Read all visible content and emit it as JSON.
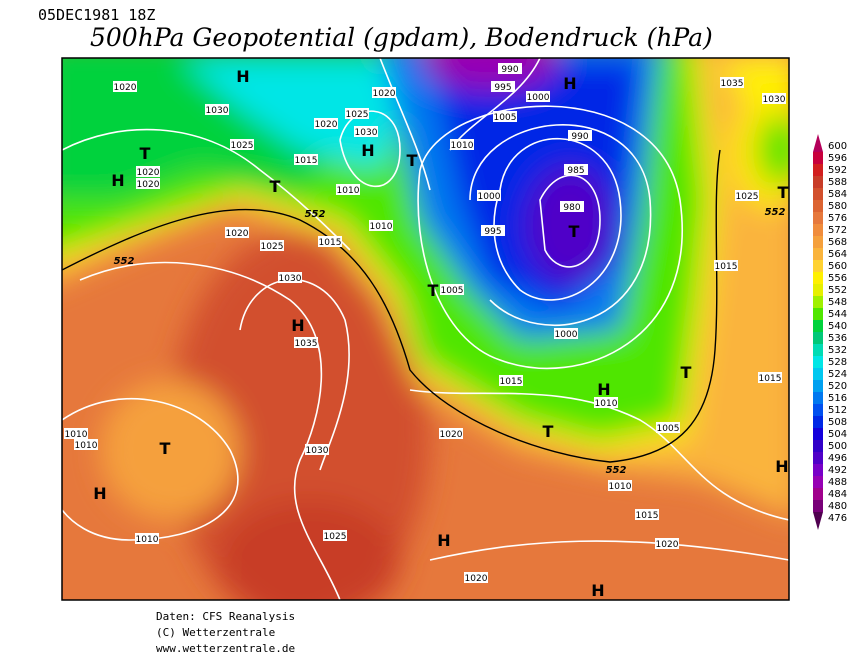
{
  "header": {
    "date": "05DEC1981 18Z",
    "title": "500hPa Geopotential (gpdam), Bodendruck (hPa)"
  },
  "map": {
    "pressure_labels": [
      "1020",
      "1030",
      "1025",
      "1020",
      "1020",
      "1015",
      "1010",
      "1020",
      "1025",
      "1030",
      "1020",
      "990",
      "995",
      "1000",
      "1005",
      "1010",
      "990",
      "985",
      "980",
      "1000",
      "995",
      "1010",
      "1020",
      "1025",
      "1015",
      "1005",
      "1030",
      "1035",
      "1000",
      "1015",
      "1010",
      "1005",
      "1020",
      "1010",
      "1010",
      "1030",
      "1010",
      "1015",
      "1025",
      "1010",
      "1020",
      "1020",
      "1035",
      "1030",
      "1025",
      "1015",
      "1015"
    ],
    "contour_labels": [
      "552",
      "552",
      "552",
      "552"
    ],
    "centers": [
      "H",
      "H",
      "T",
      "H",
      "H",
      "T",
      "T",
      "T",
      "T",
      "H",
      "T",
      "H",
      "T",
      "T",
      "H",
      "H",
      "H",
      "T",
      "H"
    ]
  },
  "colorbar": {
    "ticks": [
      600,
      596,
      592,
      588,
      584,
      580,
      576,
      572,
      568,
      564,
      560,
      556,
      552,
      548,
      544,
      540,
      536,
      532,
      528,
      524,
      520,
      516,
      512,
      508,
      504,
      500,
      496,
      492,
      488,
      484,
      480,
      476
    ],
    "colors": [
      "#b4005a",
      "#c8003c",
      "#d21e1e",
      "#c83c28",
      "#d2502d",
      "#dc6432",
      "#e6783c",
      "#f08c3c",
      "#f5a03c",
      "#fab43c",
      "#ffd232",
      "#fff000",
      "#e6f000",
      "#a0f000",
      "#50e600",
      "#00d23c",
      "#00c878",
      "#00dcb4",
      "#00e6e6",
      "#00c8f0",
      "#00a0f0",
      "#0078f0",
      "#0050f0",
      "#0028e6",
      "#1400dc",
      "#3200c8",
      "#5000c8",
      "#7800c8",
      "#9600b4",
      "#a0008c",
      "#780078",
      "#500050"
    ]
  },
  "footer": {
    "lines": [
      "Daten: CFS Reanalysis",
      "(C) Wetterzentrale",
      "www.wetterzentrale.de"
    ]
  }
}
